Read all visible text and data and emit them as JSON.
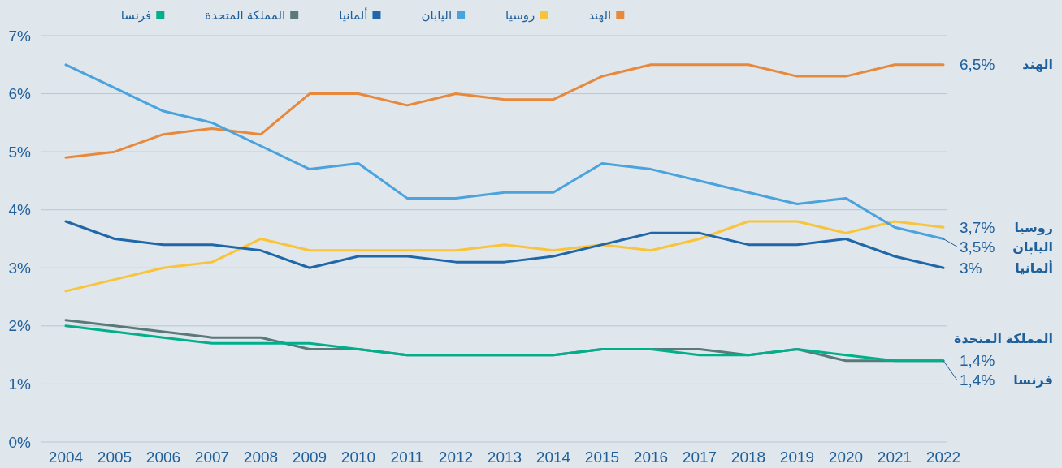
{
  "chart_data": {
    "type": "line",
    "categories": [
      "2004",
      "2005",
      "2006",
      "2007",
      "2008",
      "2009",
      "2010",
      "2011",
      "2012",
      "2013",
      "2014",
      "2015",
      "2016",
      "2017",
      "2018",
      "2019",
      "2020",
      "2021",
      "2022"
    ],
    "series": [
      {
        "name": "الهند",
        "color": "#e8883a",
        "values": [
          4.9,
          5.0,
          5.3,
          5.4,
          5.3,
          6.0,
          6.0,
          5.8,
          6.0,
          5.9,
          5.9,
          6.3,
          6.5,
          6.5,
          6.5,
          6.3,
          6.3,
          6.5,
          6.5
        ]
      },
      {
        "name": "روسيا",
        "color": "#f9c43a",
        "values": [
          2.6,
          2.8,
          3.0,
          3.1,
          3.5,
          3.3,
          3.3,
          3.3,
          3.3,
          3.4,
          3.3,
          3.4,
          3.3,
          3.5,
          3.8,
          3.8,
          3.6,
          3.8,
          3.7
        ]
      },
      {
        "name": "اليابان",
        "color": "#4aa3dc",
        "values": [
          6.5,
          6.1,
          5.7,
          5.5,
          5.1,
          4.7,
          4.8,
          4.2,
          4.2,
          4.3,
          4.3,
          4.8,
          4.7,
          4.5,
          4.3,
          4.1,
          4.2,
          3.7,
          3.5
        ]
      },
      {
        "name": "ألمانيا",
        "color": "#1f67a8",
        "values": [
          3.8,
          3.5,
          3.4,
          3.4,
          3.3,
          3.0,
          3.2,
          3.2,
          3.1,
          3.1,
          3.2,
          3.4,
          3.6,
          3.6,
          3.4,
          3.4,
          3.5,
          3.2,
          3.0
        ]
      },
      {
        "name": "المملكة المتحدة",
        "color": "#5a7a7a",
        "values": [
          2.1,
          2.0,
          1.9,
          1.8,
          1.8,
          1.6,
          1.6,
          1.5,
          1.5,
          1.5,
          1.5,
          1.6,
          1.6,
          1.6,
          1.5,
          1.6,
          1.4,
          1.4,
          1.4
        ]
      },
      {
        "name": "فرنسا",
        "color": "#00b08a",
        "values": [
          2.0,
          1.9,
          1.8,
          1.7,
          1.7,
          1.7,
          1.6,
          1.5,
          1.5,
          1.5,
          1.5,
          1.6,
          1.6,
          1.5,
          1.5,
          1.6,
          1.5,
          1.4,
          1.4
        ]
      }
    ],
    "ylim": [
      0,
      7
    ],
    "yticks": [
      {
        "value": 0,
        "label": "0%"
      },
      {
        "value": 1,
        "label": "1%"
      },
      {
        "value": 2,
        "label": "2%"
      },
      {
        "value": 3,
        "label": "3%"
      },
      {
        "value": 4,
        "label": "4%"
      },
      {
        "value": 5,
        "label": "5%"
      },
      {
        "value": 6,
        "label": "6%"
      },
      {
        "value": 7,
        "label": "7%"
      }
    ],
    "grid": "y",
    "legend": "top",
    "marker": "none",
    "line_style": "solid",
    "annotations": [
      "الهند",
      {
        "text": "6,5%",
        "x": "2022",
        "y": 6.5
      },
      "روسيا",
      {
        "text": "3,7%",
        "x": "2022",
        "y": 3.7
      },
      "اليابان",
      {
        "text": "3,5%",
        "x": "2022",
        "y": 3.5
      },
      "ألمانيا",
      {
        "text": "3%",
        "x": "2022",
        "y": 3.0
      },
      "المملكة المتحدة",
      {
        "text": "1,4%",
        "x": "2022",
        "y": 1.4
      },
      "فرنسا",
      {
        "text": "1,4%",
        "x": "2022",
        "y": 1.4
      }
    ]
  }
}
